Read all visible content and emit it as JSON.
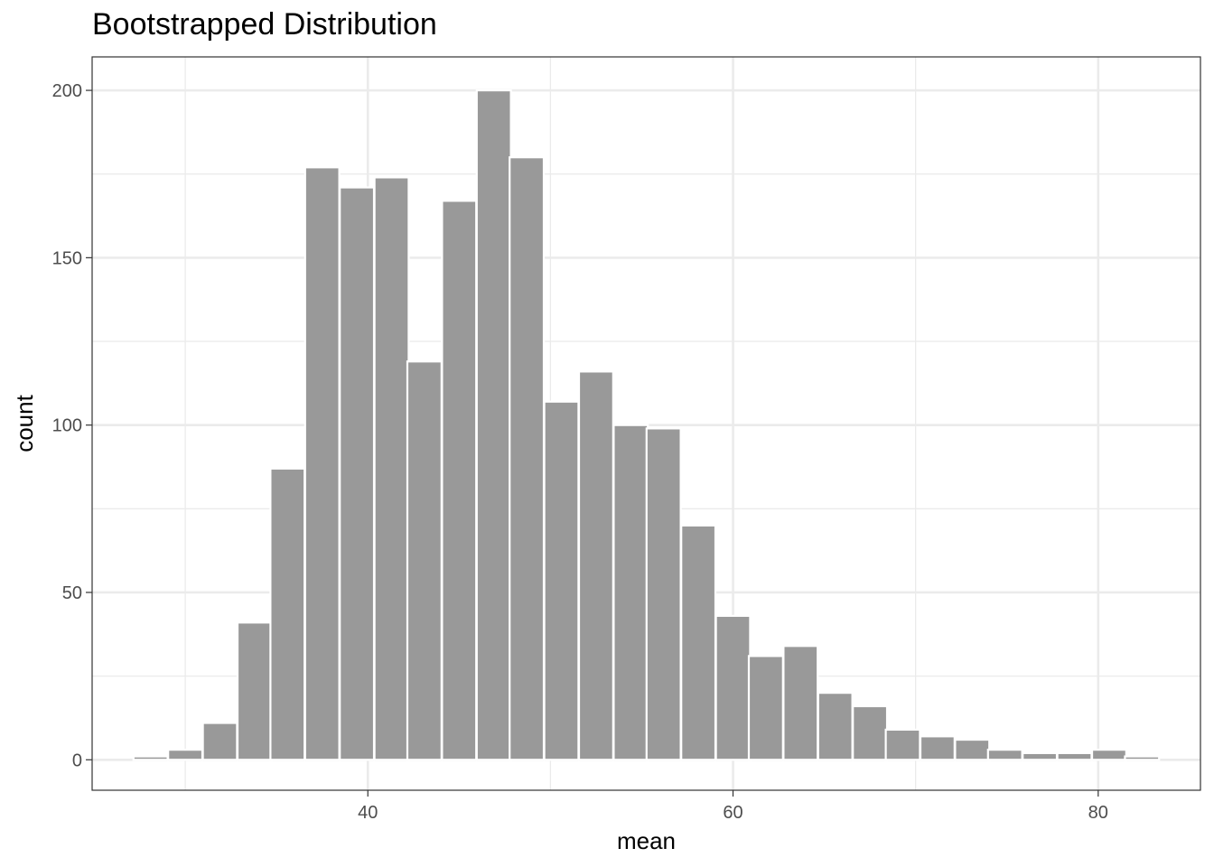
{
  "chart_data": {
    "type": "bar",
    "title": "Bootstrapped Distribution",
    "xlabel": "mean",
    "ylabel": "count",
    "bin_width": 1.87,
    "bins": [
      {
        "x": 28.1,
        "count": 1
      },
      {
        "x": 30.0,
        "count": 3
      },
      {
        "x": 31.9,
        "count": 11
      },
      {
        "x": 33.8,
        "count": 41
      },
      {
        "x": 35.6,
        "count": 87
      },
      {
        "x": 37.5,
        "count": 177
      },
      {
        "x": 39.4,
        "count": 171
      },
      {
        "x": 41.3,
        "count": 174
      },
      {
        "x": 43.1,
        "count": 119
      },
      {
        "x": 45.0,
        "count": 167
      },
      {
        "x": 46.9,
        "count": 200
      },
      {
        "x": 48.7,
        "count": 180
      },
      {
        "x": 50.6,
        "count": 107
      },
      {
        "x": 52.5,
        "count": 116
      },
      {
        "x": 54.4,
        "count": 100
      },
      {
        "x": 56.2,
        "count": 99
      },
      {
        "x": 58.1,
        "count": 70
      },
      {
        "x": 60.0,
        "count": 43
      },
      {
        "x": 61.8,
        "count": 31
      },
      {
        "x": 63.7,
        "count": 34
      },
      {
        "x": 65.6,
        "count": 20
      },
      {
        "x": 67.5,
        "count": 16
      },
      {
        "x": 69.3,
        "count": 9
      },
      {
        "x": 71.2,
        "count": 7
      },
      {
        "x": 73.1,
        "count": 6
      },
      {
        "x": 74.9,
        "count": 3
      },
      {
        "x": 76.8,
        "count": 2
      },
      {
        "x": 78.7,
        "count": 2
      },
      {
        "x": 80.6,
        "count": 3
      },
      {
        "x": 82.4,
        "count": 1
      }
    ],
    "xlim": [
      24.9,
      85.6
    ],
    "ylim": [
      -9.1,
      210
    ],
    "x_ticks": [
      40,
      60,
      80
    ],
    "x_minor_ticks": [
      30,
      50,
      70
    ],
    "y_ticks": [
      0,
      50,
      100,
      150,
      200
    ],
    "y_minor_ticks": [
      25,
      75,
      125,
      175
    ],
    "grid": true,
    "bar_fill": "#999999",
    "bar_outline": "#ffffff"
  }
}
